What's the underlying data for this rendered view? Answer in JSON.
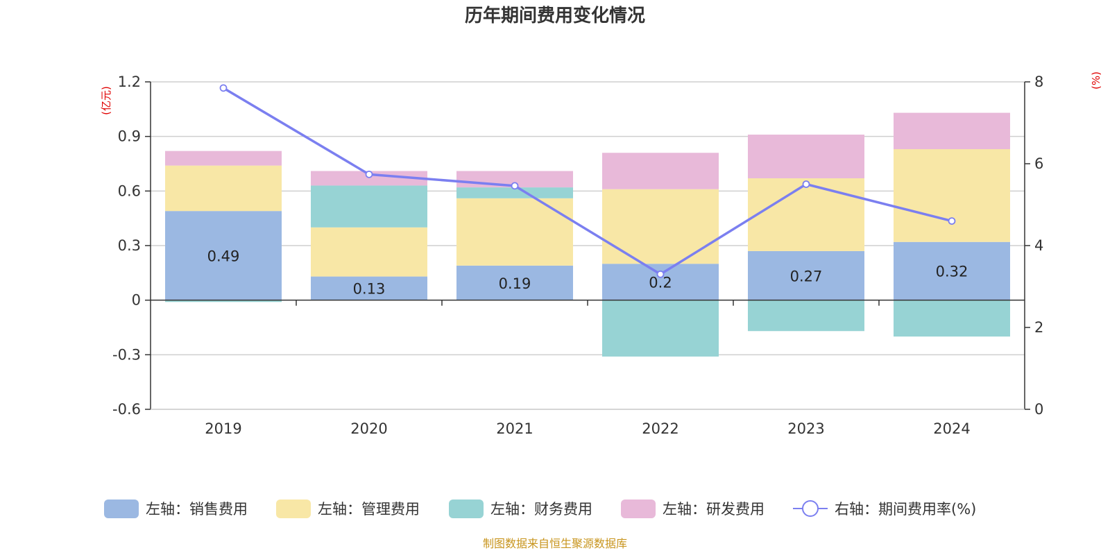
{
  "chart_data": {
    "type": "bar",
    "title": "历年期间费用变化情况",
    "categories": [
      "2019",
      "2020",
      "2021",
      "2022",
      "2023",
      "2024"
    ],
    "left_axis": {
      "unit": "(亿元)",
      "ylim": [
        -0.6,
        1.2
      ],
      "ticks": [
        "-0.6",
        "-0.3",
        "0",
        "0.3",
        "0.6",
        "0.9",
        "1.2"
      ]
    },
    "right_axis": {
      "unit": "(%)",
      "ylim": [
        0,
        8
      ],
      "ticks": [
        "0",
        "2",
        "4",
        "6",
        "8"
      ]
    },
    "series": [
      {
        "name": "左轴：销售费用",
        "type": "bar",
        "color": "#9bb8e2",
        "values": [
          0.49,
          0.13,
          0.19,
          0.2,
          0.27,
          0.32
        ],
        "labels": [
          "0.49",
          "0.13",
          "0.19",
          "0.2",
          "0.27",
          "0.32"
        ]
      },
      {
        "name": "左轴：管理费用",
        "type": "bar",
        "color": "#f8e7a6",
        "values": [
          0.25,
          0.27,
          0.37,
          0.41,
          0.4,
          0.51
        ]
      },
      {
        "name": "左轴：财务费用",
        "type": "bar",
        "color": "#97d3d4",
        "values": [
          -0.01,
          0.23,
          0.06,
          -0.31,
          -0.17,
          -0.2
        ]
      },
      {
        "name": "左轴：研发费用",
        "type": "bar",
        "color": "#e8b9d9",
        "values": [
          0.08,
          0.08,
          0.09,
          0.2,
          0.24,
          0.2
        ]
      },
      {
        "name": "右轴：期间费用率(%)",
        "type": "line",
        "color": "#7b7ff0",
        "values": [
          7.85,
          5.74,
          5.46,
          3.3,
          5.5,
          4.6
        ]
      }
    ],
    "grid": true,
    "legend_position": "bottom"
  },
  "source_note": "制图数据来自恒生聚源数据库"
}
